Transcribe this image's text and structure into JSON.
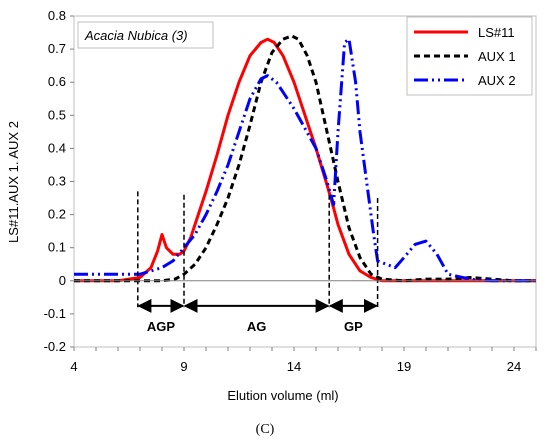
{
  "chart_data": {
    "type": "line",
    "title": "",
    "annotation": "Acacia Nubica (3)",
    "xlabel": "Elution volume (ml)",
    "ylabel": "LS#11.AUX 1. AUX 2",
    "xlim": [
      4,
      25
    ],
    "ylim": [
      -0.2,
      0.8
    ],
    "x_ticks": [
      "4",
      "9",
      "14",
      "19",
      "24"
    ],
    "y_ticks": [
      "-0.2",
      "-0.1",
      "0",
      "0.1",
      "0.2",
      "0.3",
      "0.4",
      "0.5",
      "0.6",
      "0.7",
      "0.8"
    ],
    "grid": false,
    "legend_position": "top-right",
    "caption": "(C)",
    "series": [
      {
        "name": "LS#11",
        "color": "#ff0000",
        "style": "solid",
        "x": [
          4,
          6,
          7,
          7.5,
          7.8,
          8.0,
          8.2,
          8.5,
          8.8,
          9.0,
          9.3,
          9.6,
          10,
          10.5,
          11,
          11.5,
          12,
          12.5,
          12.8,
          13.1,
          13.5,
          14,
          14.5,
          15,
          15.5,
          15.8,
          16,
          16.5,
          17,
          17.5,
          18,
          19,
          20,
          21,
          22,
          23,
          24,
          25
        ],
        "y": [
          0,
          0,
          0.01,
          0.04,
          0.09,
          0.14,
          0.1,
          0.08,
          0.08,
          0.09,
          0.13,
          0.19,
          0.27,
          0.38,
          0.5,
          0.6,
          0.68,
          0.72,
          0.73,
          0.72,
          0.68,
          0.6,
          0.5,
          0.4,
          0.29,
          0.22,
          0.17,
          0.08,
          0.03,
          0.01,
          0,
          0,
          0,
          0,
          0,
          0,
          0,
          0
        ]
      },
      {
        "name": "AUX 1",
        "color": "#000000",
        "style": "dashed",
        "x": [
          4,
          6,
          8,
          8.6,
          9,
          9.5,
          10,
          10.5,
          11,
          11.5,
          12,
          12.5,
          13,
          13.5,
          13.9,
          14.2,
          14.6,
          15,
          15.5,
          16,
          16.5,
          17,
          17.5,
          18,
          19,
          20,
          21,
          22,
          23,
          24,
          25
        ],
        "y": [
          0,
          0,
          0,
          0.005,
          0.02,
          0.05,
          0.1,
          0.17,
          0.25,
          0.35,
          0.47,
          0.6,
          0.69,
          0.73,
          0.74,
          0.73,
          0.68,
          0.6,
          0.45,
          0.3,
          0.16,
          0.07,
          0.02,
          0.005,
          0,
          0.005,
          0.005,
          0.01,
          0.005,
          0,
          0
        ]
      },
      {
        "name": "AUX 2",
        "color": "#0000ff",
        "style": "dash-dot",
        "x": [
          4,
          5,
          6,
          6.8,
          7,
          7.5,
          8,
          8.5,
          9,
          9.5,
          10,
          10.5,
          11,
          11.5,
          12,
          12.5,
          12.8,
          13.2,
          13.5,
          14,
          14.5,
          15,
          15.5,
          15.8,
          16.0,
          16.3,
          16.5,
          16.8,
          17,
          17.3,
          17.6,
          17.8,
          18.2,
          18.6,
          19,
          19.5,
          20,
          20.5,
          21,
          22,
          23,
          24,
          25
        ],
        "y": [
          0.02,
          0.02,
          0.02,
          0.02,
          0.02,
          0.03,
          0.04,
          0.06,
          0.1,
          0.14,
          0.2,
          0.27,
          0.35,
          0.45,
          0.55,
          0.61,
          0.62,
          0.6,
          0.57,
          0.52,
          0.46,
          0.4,
          0.3,
          0.23,
          0.45,
          0.72,
          0.73,
          0.6,
          0.45,
          0.3,
          0.15,
          0.06,
          0.05,
          0.04,
          0.07,
          0.11,
          0.12,
          0.08,
          0.02,
          0.005,
          0,
          0,
          0
        ]
      }
    ],
    "markers": [
      {
        "x": 6.9,
        "y_top": 0.27
      },
      {
        "x": 9.0,
        "y_top": 0.26
      },
      {
        "x": 15.6,
        "y_top": 0.26
      },
      {
        "x": 17.8,
        "y_top": 0.25
      }
    ],
    "regions": [
      {
        "label": "AGP",
        "x_start": 6.9,
        "x_end": 9.0,
        "y": -0.1
      },
      {
        "label": "AG",
        "x_start": 9.0,
        "x_end": 15.6,
        "y": -0.1
      },
      {
        "label": "GP",
        "x_start": 15.6,
        "x_end": 17.8,
        "y": -0.1
      }
    ]
  }
}
